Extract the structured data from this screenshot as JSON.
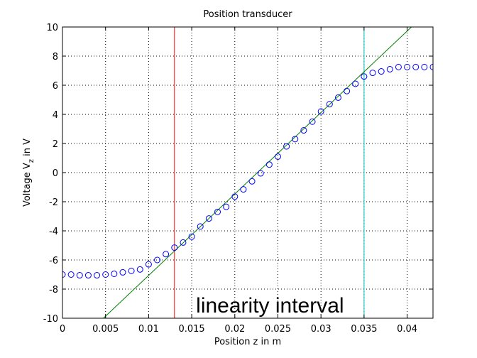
{
  "chart_data": {
    "type": "scatter",
    "title": "Position transducer",
    "xlabel": "Position z in m",
    "ylabel_main": "Voltage V",
    "ylabel_sub": "z",
    "ylabel_tail": " in V",
    "xlim": [
      0,
      0.043
    ],
    "ylim": [
      -10,
      10
    ],
    "xticks": [
      0,
      0.005,
      0.01,
      0.015,
      0.02,
      0.025,
      0.03,
      0.035,
      0.04
    ],
    "xtick_labels": [
      "0",
      "0.005",
      "0.01",
      "0.015",
      "0.02",
      "0.025",
      "0.03",
      "0.035",
      "0.04"
    ],
    "yticks": [
      -10,
      -8,
      -6,
      -4,
      -2,
      0,
      2,
      4,
      6,
      8,
      10
    ],
    "ytick_labels": [
      "-10",
      "-8",
      "-6",
      "-4",
      "-2",
      "0",
      "2",
      "4",
      "6",
      "8",
      "10"
    ],
    "grid": true,
    "series": [
      {
        "kind": "markers",
        "marker": "circle",
        "color": "#0000ff",
        "x": [
          0,
          0.001,
          0.002,
          0.003,
          0.004,
          0.005,
          0.006,
          0.007,
          0.008,
          0.009,
          0.01,
          0.011,
          0.012,
          0.013,
          0.014,
          0.015,
          0.016,
          0.017,
          0.018,
          0.019,
          0.02,
          0.021,
          0.022,
          0.023,
          0.024,
          0.025,
          0.026,
          0.027,
          0.028,
          0.029,
          0.03,
          0.031,
          0.032,
          0.033,
          0.034,
          0.035,
          0.036,
          0.037,
          0.038,
          0.039,
          0.04,
          0.041,
          0.042,
          0.043
        ],
        "y": [
          -7.0,
          -7.0,
          -7.05,
          -7.05,
          -7.05,
          -7.0,
          -6.95,
          -6.85,
          -6.75,
          -6.65,
          -6.3,
          -6.0,
          -5.6,
          -5.15,
          -4.8,
          -4.4,
          -3.7,
          -3.15,
          -2.7,
          -2.35,
          -1.65,
          -1.15,
          -0.6,
          -0.05,
          0.55,
          1.1,
          1.8,
          2.3,
          2.9,
          3.5,
          4.2,
          4.7,
          5.15,
          5.6,
          6.1,
          6.6,
          6.85,
          6.95,
          7.1,
          7.25,
          7.25,
          7.25,
          7.25,
          7.25
        ]
      },
      {
        "kind": "line",
        "color": "#008000",
        "x": [
          0.00475,
          0.0405
        ],
        "y": [
          -10,
          10
        ]
      }
    ],
    "vlines": [
      {
        "x": 0.013,
        "color": "#ff0000"
      },
      {
        "x": 0.035,
        "color": "#00bfbf"
      }
    ],
    "annotation": {
      "text": "linearity interval",
      "x": 0.0155,
      "y": -9.5
    }
  }
}
